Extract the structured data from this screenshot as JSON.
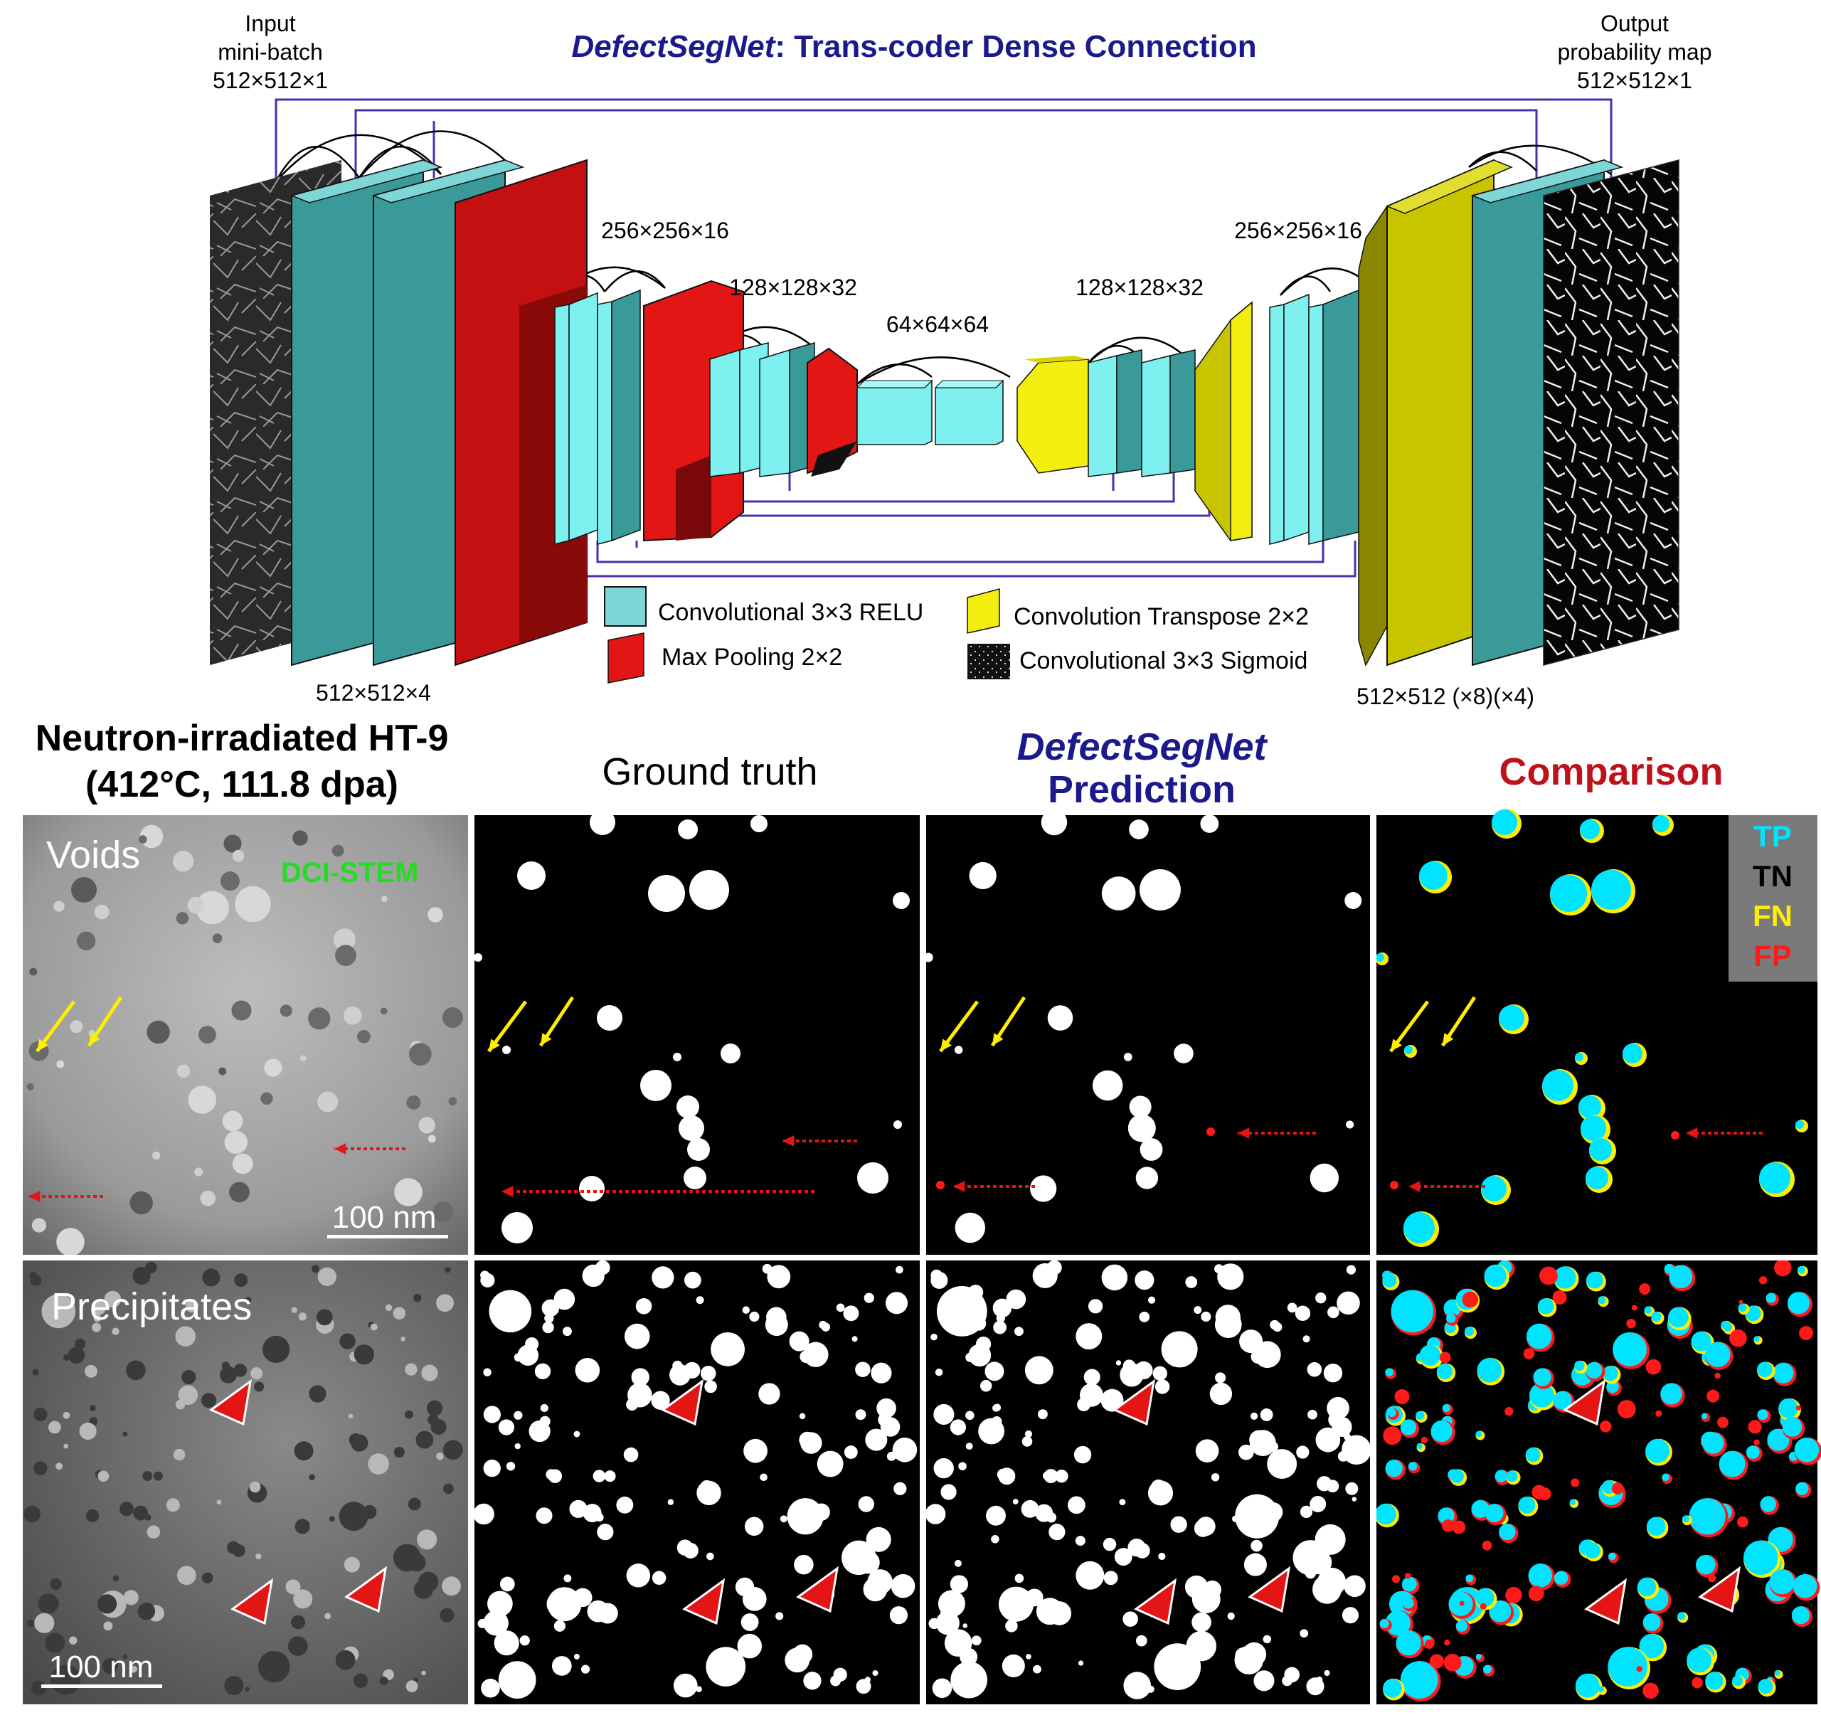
{
  "title": {
    "italic": "DefectSegNet",
    "rest": ": Trans-coder Dense Connection",
    "color": "#1a1a8c"
  },
  "input_label": [
    "Input",
    "mini-batch",
    "512×512×1"
  ],
  "output_label": [
    "Output",
    "probability map",
    "512×512×1"
  ],
  "dims": {
    "d512x4": "512×512×4",
    "d256_left": "256×256×16",
    "d128_left": "128×128×32",
    "d64": "64×64×64",
    "d128_right": "128×128×32",
    "d256_right": "256×256×16",
    "d512_right": "512×512 (×8)(×4)"
  },
  "legend": {
    "conv_relu": "Convolutional 3×3 RELU",
    "max_pool": "Max Pooling 2×2",
    "conv_transpose": "Convolution Transpose 2×2",
    "conv_sigmoid": "Convolutional 3×3 Sigmoid"
  },
  "colors": {
    "conv_dark": "#3a9a9a",
    "conv_light": "#7ff0f0",
    "pool": "#d11212",
    "transpose": "#c8c400",
    "connection": "#4a2fb0",
    "cyan_tp": "#00e5ff",
    "yellow_fn": "#ffee00",
    "red_fp": "#ff1a1a",
    "green_label": "#22dd22",
    "navy": "#1a1a8c",
    "crimson": "#c0101a"
  },
  "sample": {
    "line1": "Neutron-irradiated HT-9",
    "line2": "(412°C, 111.8 dpa)"
  },
  "columns": {
    "ground_truth": "Ground truth",
    "prediction_italic": "DefectSegNet",
    "prediction": "Prediction",
    "comparison": "Comparison"
  },
  "rows": {
    "voids": "Voids",
    "precipitates": "Precipitates"
  },
  "dci_stem": "DCI-STEM",
  "scale_bar": "100 nm",
  "comparison_legend": [
    "TP",
    "TN",
    "FN",
    "FP"
  ]
}
